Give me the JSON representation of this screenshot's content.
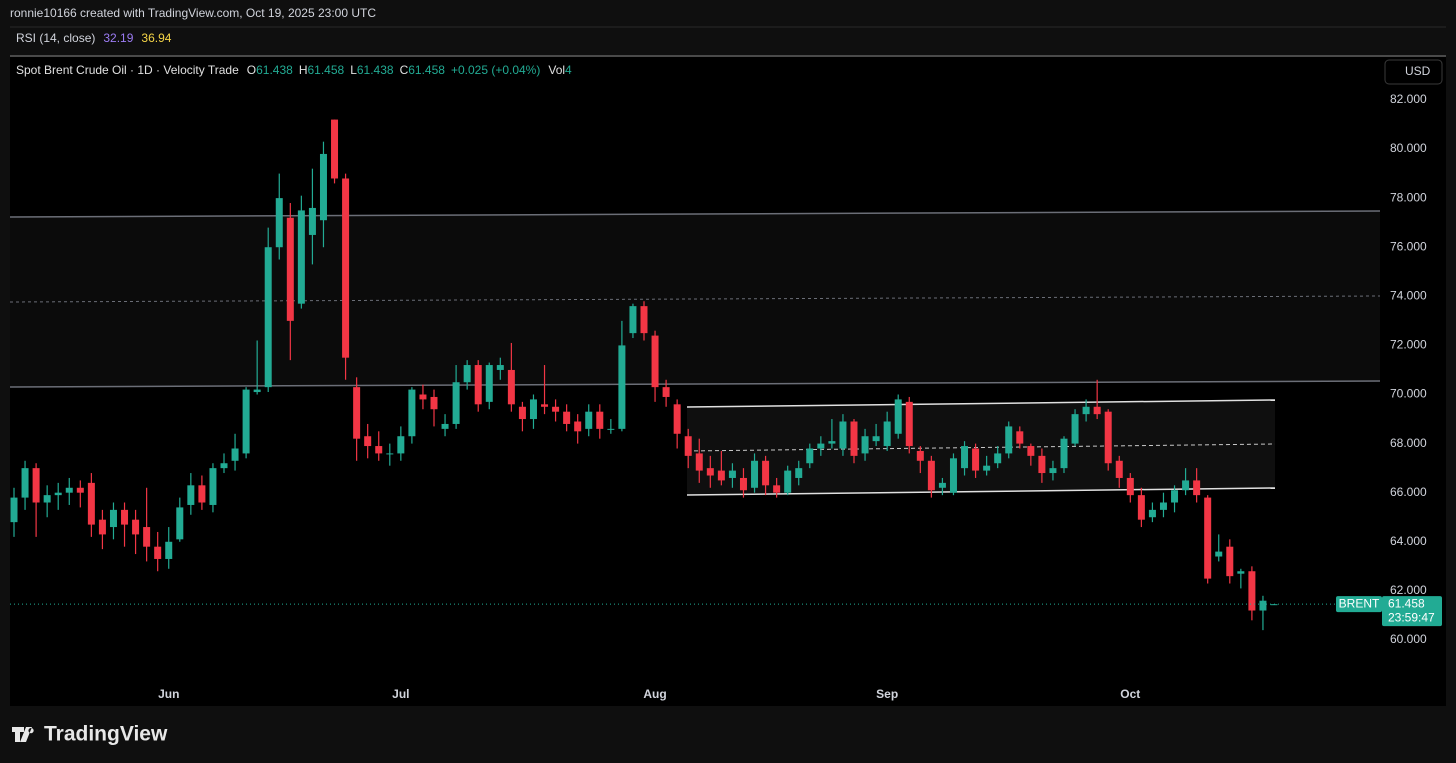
{
  "header": {
    "credit": "ronnie10166 created with TradingView.com, Oct 19, 2025 23:00 UTC",
    "indicator": "RSI (14, close)",
    "indicator_values": [
      {
        "value": 32.19,
        "color": "#9c7cf4"
      },
      {
        "value": 36.94,
        "color": "#f5d547"
      }
    ]
  },
  "footer": {
    "brand": "TradingView"
  },
  "chart_data": {
    "type": "candlestick",
    "title": "Spot Brent Crude Oil · 1D · Velocity Trade",
    "legend": [
      {
        "label": "O",
        "value": 61.438
      },
      {
        "label": "H",
        "value": 61.458
      },
      {
        "label": "L",
        "value": 61.438
      },
      {
        "label": "C",
        "value": 61.458
      }
    ],
    "change": "+0.025 (+0.04%)",
    "volume_label": "Vol",
    "volume": 4,
    "currency": "USD",
    "symbol": "BRENT",
    "last_price": 61.458,
    "countdown": "23:59:47",
    "up_color": "#22ab94",
    "down_color": "#f23645",
    "categories": [
      null,
      null,
      null,
      null,
      null,
      null,
      null,
      null,
      null,
      null,
      null,
      null,
      null,
      null,
      "Jun",
      null,
      null,
      null,
      null,
      null,
      null,
      null,
      null,
      null,
      null,
      null,
      null,
      null,
      null,
      null,
      null,
      null,
      null,
      null,
      null,
      "Jul",
      null,
      null,
      null,
      null,
      null,
      null,
      null,
      null,
      null,
      null,
      null,
      null,
      null,
      null,
      null,
      null,
      null,
      null,
      null,
      null,
      null,
      null,
      "Aug",
      null,
      null,
      null,
      null,
      null,
      null,
      null,
      null,
      null,
      null,
      null,
      null,
      null,
      null,
      null,
      null,
      null,
      null,
      null,
      null,
      "Sep",
      null,
      null,
      null,
      null,
      null,
      null,
      null,
      null,
      null,
      null,
      null,
      null,
      null,
      null,
      null,
      null,
      null,
      null,
      null,
      null,
      null,
      "Oct",
      null,
      null,
      null,
      null,
      null,
      null,
      null,
      null,
      null,
      null,
      null,
      null,
      null
    ],
    "open": [
      64.8,
      65.8,
      67.0,
      65.6,
      65.9,
      66.0,
      66.2,
      66.4,
      64.9,
      64.6,
      65.3,
      64.9,
      64.6,
      63.8,
      63.3,
      64.1,
      65.5,
      66.3,
      65.5,
      67.0,
      67.3,
      67.6,
      70.1,
      70.3,
      76.0,
      77.2,
      73.7,
      76.5,
      77.1,
      81.2,
      78.8,
      70.3,
      68.3,
      67.9,
      67.6,
      67.6,
      68.3,
      70.0,
      69.9,
      68.6,
      68.8,
      70.5,
      71.2,
      69.7,
      71.0,
      71.0,
      69.5,
      69.0,
      69.6,
      69.5,
      69.3,
      68.9,
      68.6,
      69.3,
      68.6,
      68.6,
      72.5,
      73.6,
      72.4,
      70.3,
      69.6,
      68.3,
      67.6,
      67.0,
      66.9,
      66.6,
      66.6,
      66.2,
      67.3,
      66.3,
      66.0,
      66.6,
      67.2,
      67.8,
      68.0,
      67.8,
      68.9,
      67.6,
      68.1,
      67.9,
      68.4,
      69.7,
      67.7,
      67.3,
      66.2,
      66.0,
      67.0,
      67.8,
      66.9,
      67.2,
      67.6,
      68.5,
      67.9,
      67.5,
      66.8,
      67.0,
      68.0,
      69.2,
      69.5,
      69.3,
      67.3,
      66.6,
      65.9,
      65.0,
      65.3,
      65.6,
      66.1,
      66.5,
      65.8,
      63.4,
      63.8,
      62.7,
      62.8,
      61.2,
      61.438
    ],
    "high": [
      66.2,
      67.3,
      67.2,
      66.3,
      66.4,
      66.6,
      66.5,
      66.8,
      65.3,
      65.6,
      65.6,
      65.3,
      66.2,
      64.4,
      64.6,
      65.8,
      66.8,
      66.7,
      67.2,
      67.6,
      68.4,
      70.3,
      72.2,
      76.8,
      79.0,
      77.8,
      78.1,
      79.2,
      80.3,
      81.2,
      79.0,
      70.7,
      68.8,
      68.5,
      68.0,
      68.7,
      70.3,
      70.4,
      70.2,
      69.2,
      71.2,
      71.4,
      71.4,
      71.3,
      71.5,
      72.1,
      69.7,
      70.0,
      71.2,
      69.8,
      69.6,
      69.2,
      69.6,
      69.6,
      69.0,
      73.0,
      73.7,
      73.8,
      72.6,
      70.6,
      69.8,
      68.6,
      68.2,
      67.5,
      67.7,
      67.2,
      67.0,
      67.6,
      67.5,
      66.6,
      67.1,
      67.3,
      68.0,
      68.3,
      69.0,
      69.2,
      69.0,
      68.6,
      68.8,
      69.3,
      70.0,
      69.9,
      67.9,
      67.5,
      66.6,
      67.6,
      68.1,
      68.0,
      67.5,
      67.9,
      68.9,
      68.7,
      68.0,
      67.8,
      67.3,
      68.3,
      69.4,
      69.8,
      70.6,
      69.4,
      67.5,
      66.8,
      66.2,
      65.6,
      66.0,
      66.3,
      67.0,
      67.0,
      65.9,
      64.3,
      64.1,
      62.9,
      63.0,
      61.8,
      61.458
    ],
    "low": [
      64.2,
      65.3,
      64.2,
      65.0,
      65.3,
      65.5,
      65.4,
      64.2,
      63.7,
      64.1,
      63.8,
      63.5,
      63.2,
      62.8,
      62.9,
      64.0,
      65.1,
      65.3,
      65.2,
      66.8,
      66.9,
      67.4,
      70.0,
      70.1,
      75.5,
      71.4,
      73.5,
      75.3,
      76.0,
      78.6,
      70.6,
      67.3,
      67.4,
      67.3,
      67.1,
      67.3,
      68.0,
      69.4,
      68.7,
      68.3,
      68.6,
      70.2,
      69.3,
      69.4,
      70.6,
      69.3,
      68.5,
      68.6,
      69.2,
      68.9,
      68.5,
      68.0,
      68.3,
      68.2,
      68.4,
      68.5,
      72.3,
      72.2,
      69.7,
      69.5,
      67.8,
      67.0,
      66.4,
      66.2,
      66.3,
      66.2,
      65.8,
      66.0,
      65.9,
      65.8,
      65.9,
      66.3,
      67.0,
      67.5,
      67.8,
      67.5,
      67.2,
      67.3,
      67.9,
      67.7,
      68.2,
      67.6,
      66.8,
      65.8,
      65.9,
      65.9,
      66.7,
      66.6,
      66.7,
      67.0,
      67.4,
      67.8,
      67.1,
      66.4,
      66.5,
      66.8,
      67.9,
      68.9,
      69.0,
      66.9,
      66.2,
      65.6,
      64.6,
      64.8,
      65.0,
      65.2,
      65.9,
      65.6,
      62.3,
      63.2,
      62.3,
      62.1,
      60.8,
      60.4,
      61.438
    ],
    "close": [
      65.8,
      67.0,
      65.6,
      65.9,
      66.0,
      66.2,
      66.0,
      64.7,
      64.3,
      65.3,
      64.7,
      64.3,
      63.8,
      63.3,
      64.0,
      65.4,
      66.3,
      65.6,
      67.0,
      67.2,
      67.8,
      70.2,
      70.2,
      76.0,
      78.0,
      73.0,
      77.5,
      77.6,
      79.8,
      78.8,
      71.5,
      68.2,
      67.9,
      67.6,
      67.6,
      68.3,
      70.2,
      69.8,
      69.4,
      68.8,
      70.5,
      71.2,
      69.6,
      71.2,
      71.2,
      69.6,
      69.0,
      69.8,
      69.5,
      69.3,
      68.8,
      68.5,
      69.3,
      68.6,
      68.6,
      72.0,
      73.6,
      72.5,
      70.3,
      69.9,
      68.4,
      67.5,
      66.9,
      66.7,
      66.5,
      66.9,
      66.1,
      67.3,
      66.3,
      66.0,
      66.9,
      67.0,
      67.8,
      68.0,
      68.1,
      68.9,
      67.5,
      68.3,
      68.3,
      68.9,
      69.8,
      67.9,
      67.3,
      66.1,
      66.4,
      67.4,
      67.9,
      66.9,
      67.1,
      67.6,
      68.7,
      68.0,
      67.5,
      66.8,
      67.0,
      68.2,
      69.2,
      69.5,
      69.2,
      67.2,
      66.6,
      65.9,
      64.9,
      65.3,
      65.6,
      66.1,
      66.5,
      65.9,
      62.5,
      63.6,
      62.6,
      62.8,
      61.2,
      61.6,
      61.458
    ],
    "ylim": [
      57.31,
      83.79
    ],
    "yticks": [
      {
        "value": 60,
        "label": "60.000"
      },
      {
        "value": 62,
        "label": "62.000"
      },
      {
        "value": 64,
        "label": "64.000"
      },
      {
        "value": 66,
        "label": "66.000"
      },
      {
        "value": 68,
        "label": "68.000"
      },
      {
        "value": 70,
        "label": "70.000"
      },
      {
        "value": 72,
        "label": "72.000"
      },
      {
        "value": 74,
        "label": "74.000"
      },
      {
        "value": 76,
        "label": "76.000"
      },
      {
        "value": 78,
        "label": "78.000"
      },
      {
        "value": 80,
        "label": "80.000"
      },
      {
        "value": 82,
        "label": "82.000"
      }
    ],
    "grid": false
  }
}
